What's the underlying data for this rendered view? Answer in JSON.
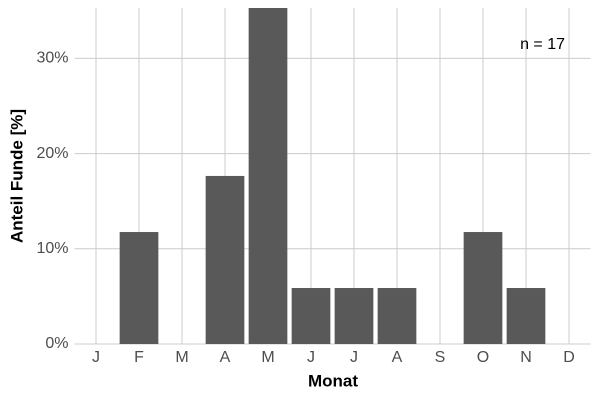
{
  "chart_data": {
    "type": "bar",
    "x_label": "Monat",
    "y_label": "Anteil Funde [%]",
    "annotation": "n = 17",
    "categories": [
      "J",
      "F",
      "M",
      "A",
      "M",
      "J",
      "J",
      "A",
      "S",
      "O",
      "N",
      "D"
    ],
    "values": [
      0,
      11.76,
      0,
      17.65,
      35.29,
      5.88,
      5.88,
      5.88,
      0,
      11.76,
      5.88,
      0
    ],
    "color": "#595959",
    "ylim": [
      0,
      35.29
    ],
    "yticks": [
      {
        "value": 0,
        "label": "0%"
      },
      {
        "value": 10,
        "label": "10%"
      },
      {
        "value": 20,
        "label": "20%"
      },
      {
        "value": 30,
        "label": "30%"
      }
    ],
    "grid": true
  }
}
